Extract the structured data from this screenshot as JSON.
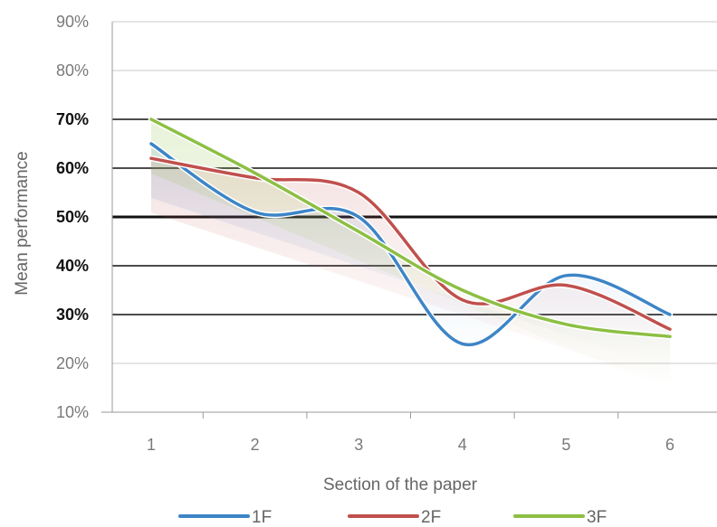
{
  "chart_data": {
    "type": "line",
    "xlabel": "Section of the paper",
    "ylabel": "Mean performance",
    "x": [
      1,
      2,
      3,
      4,
      5,
      6
    ],
    "ylim": [
      10,
      90
    ],
    "y_ticks": [
      "10%",
      "20%",
      "30%",
      "40%",
      "50%",
      "60%",
      "70%",
      "80%",
      "90%"
    ],
    "y_unit": "%",
    "emphasized_gridlines": [
      30,
      40,
      50,
      60,
      70
    ],
    "heavy_gridline": 50,
    "series": [
      {
        "name": "1F",
        "color": "#3d85c6",
        "values": [
          65,
          51,
          50,
          24,
          38,
          30
        ]
      },
      {
        "name": "2F",
        "color": "#c0504d",
        "values": [
          62,
          58,
          55,
          33,
          36,
          27
        ]
      },
      {
        "name": "3F",
        "color": "#8dbf44",
        "values": [
          70,
          59,
          47,
          35,
          28,
          25.5
        ]
      }
    ],
    "legend_position": "bottom"
  }
}
